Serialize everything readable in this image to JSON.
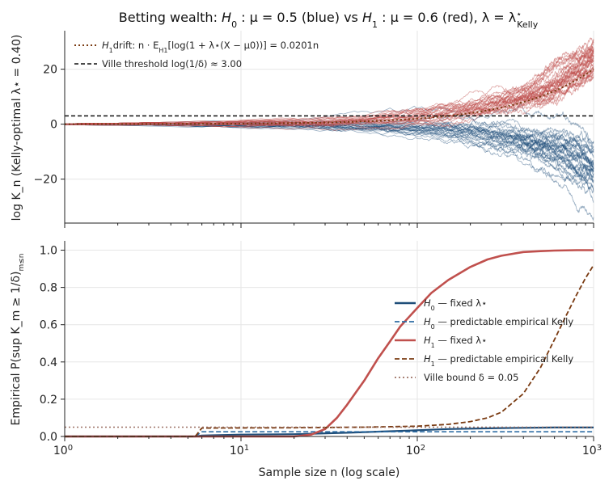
{
  "title": {
    "prefix": "Betting wealth: ",
    "h0": "H",
    "h0_sub": "0",
    "h0_rest": " : μ = 0.5 (blue) vs ",
    "h1": "H",
    "h1_sub": "1",
    "h1_rest": " : μ = 0.6 (red),  λ = λ",
    "lam_sup": "⋆",
    "lam_sub": "Kelly"
  },
  "colors": {
    "blue": "#1f4e79",
    "blue_light": "#2e6da4",
    "red": "#c0504d",
    "brown": "#7a3b12",
    "ville": "#9c7063",
    "black": "#111111"
  },
  "chart_data": [
    {
      "type": "line",
      "panel": "top",
      "ylabel": "log K_n  (Kelly-optimal λ⋆ = 0.40)",
      "xscale": "log",
      "xlim": [
        1,
        1000
      ],
      "ylim": [
        -36,
        34
      ],
      "yticks": [
        -20,
        0,
        20
      ],
      "ytick_labels": [
        "−20",
        "0",
        "20"
      ],
      "grid": true,
      "legend_position": "top-left",
      "series": [
        {
          "name": "H1 drift: n·E_H1[log(1+λ⋆(X−μ0))] = 0.0201n",
          "kind": "drift",
          "slope": 0.0201
        },
        {
          "name": "Ville threshold log(1/δ) ≈ 3.00",
          "kind": "threshold",
          "value": 3.0
        },
        {
          "kind": "paths",
          "hypothesis": "H0",
          "count": 30,
          "final_range": [
            -32,
            -10
          ]
        },
        {
          "kind": "paths",
          "hypothesis": "H1",
          "count": 30,
          "final_range": [
            6,
            30
          ]
        }
      ],
      "legend": {
        "drift": "drift: n · E",
        "drift_sub": "H1",
        "drift_rest": "[log(1 + λ⋆(X − μ0))] = 0.0201n",
        "drift_h": "H",
        "drift_h_sub": "1",
        "ville": "Ville threshold log(1/δ) ≈ 3.00"
      }
    },
    {
      "type": "line",
      "panel": "bottom",
      "xlabel": "Sample size n (log scale)",
      "ylabel": "Empirical P(sup K_m ≥ 1/δ)",
      "ylabel_sub": "m≤n",
      "xscale": "log",
      "xlim": [
        1,
        1000
      ],
      "ylim": [
        0,
        1.05
      ],
      "yticks": [
        0.0,
        0.2,
        0.4,
        0.6,
        0.8,
        1.0
      ],
      "ytick_labels": [
        "0.0",
        "0.2",
        "0.4",
        "0.6",
        "0.8",
        "1.0"
      ],
      "xtick_labels": [
        "10",
        "10",
        "10",
        "10"
      ],
      "xtick_exponents": [
        "0",
        "1",
        "2",
        "3"
      ],
      "grid": true,
      "legend_position": "center-right",
      "series": [
        {
          "name": "H0 — fixed λ⋆",
          "x": [
            1,
            5.5,
            6,
            10,
            20,
            40,
            80,
            150,
            300,
            600,
            1000
          ],
          "values": [
            0,
            0,
            0.005,
            0.01,
            0.012,
            0.02,
            0.03,
            0.04,
            0.045,
            0.048,
            0.048
          ]
        },
        {
          "name": "H0 — predictable empirical Kelly",
          "x": [
            1,
            5.5,
            6,
            10,
            100,
            1000
          ],
          "values": [
            0,
            0,
            0.025,
            0.025,
            0.025,
            0.025
          ]
        },
        {
          "name": "H1 — fixed λ⋆",
          "x": [
            1,
            20,
            25,
            30,
            35,
            40,
            50,
            60,
            70,
            80,
            100,
            120,
            150,
            200,
            250,
            300,
            400,
            500,
            600,
            800,
            1000
          ],
          "values": [
            0,
            0,
            0.01,
            0.04,
            0.1,
            0.17,
            0.3,
            0.42,
            0.51,
            0.59,
            0.69,
            0.77,
            0.84,
            0.91,
            0.95,
            0.97,
            0.99,
            0.995,
            0.998,
            1.0,
            1.0
          ]
        },
        {
          "name": "H1 — predictable empirical Kelly",
          "x": [
            1,
            5.5,
            6,
            20,
            50,
            100,
            150,
            200,
            250,
            300,
            400,
            500,
            600,
            700,
            800,
            900,
            1000
          ],
          "values": [
            0,
            0,
            0.045,
            0.047,
            0.05,
            0.055,
            0.065,
            0.08,
            0.1,
            0.13,
            0.23,
            0.37,
            0.52,
            0.65,
            0.76,
            0.85,
            0.92
          ]
        },
        {
          "name": "Ville bound δ = 0.05",
          "x": [
            1,
            1000
          ],
          "values": [
            0.05,
            0.05
          ]
        }
      ],
      "legend": [
        {
          "h": "H",
          "sub": "0",
          "rest": " — fixed λ⋆",
          "style": "solid",
          "color": "#1f4e79"
        },
        {
          "h": "H",
          "sub": "0",
          "rest": " — predictable empirical Kelly",
          "style": "dashed",
          "color": "#2e6da4"
        },
        {
          "h": "H",
          "sub": "1",
          "rest": " — fixed λ⋆",
          "style": "solid",
          "color": "#c0504d"
        },
        {
          "h": "H",
          "sub": "1",
          "rest": " — predictable empirical Kelly",
          "style": "dashed",
          "color": "#7a3b12"
        },
        {
          "h": "",
          "sub": "",
          "rest": "Ville bound δ = 0.05",
          "style": "dotted",
          "color": "#9c7063"
        }
      ]
    }
  ]
}
